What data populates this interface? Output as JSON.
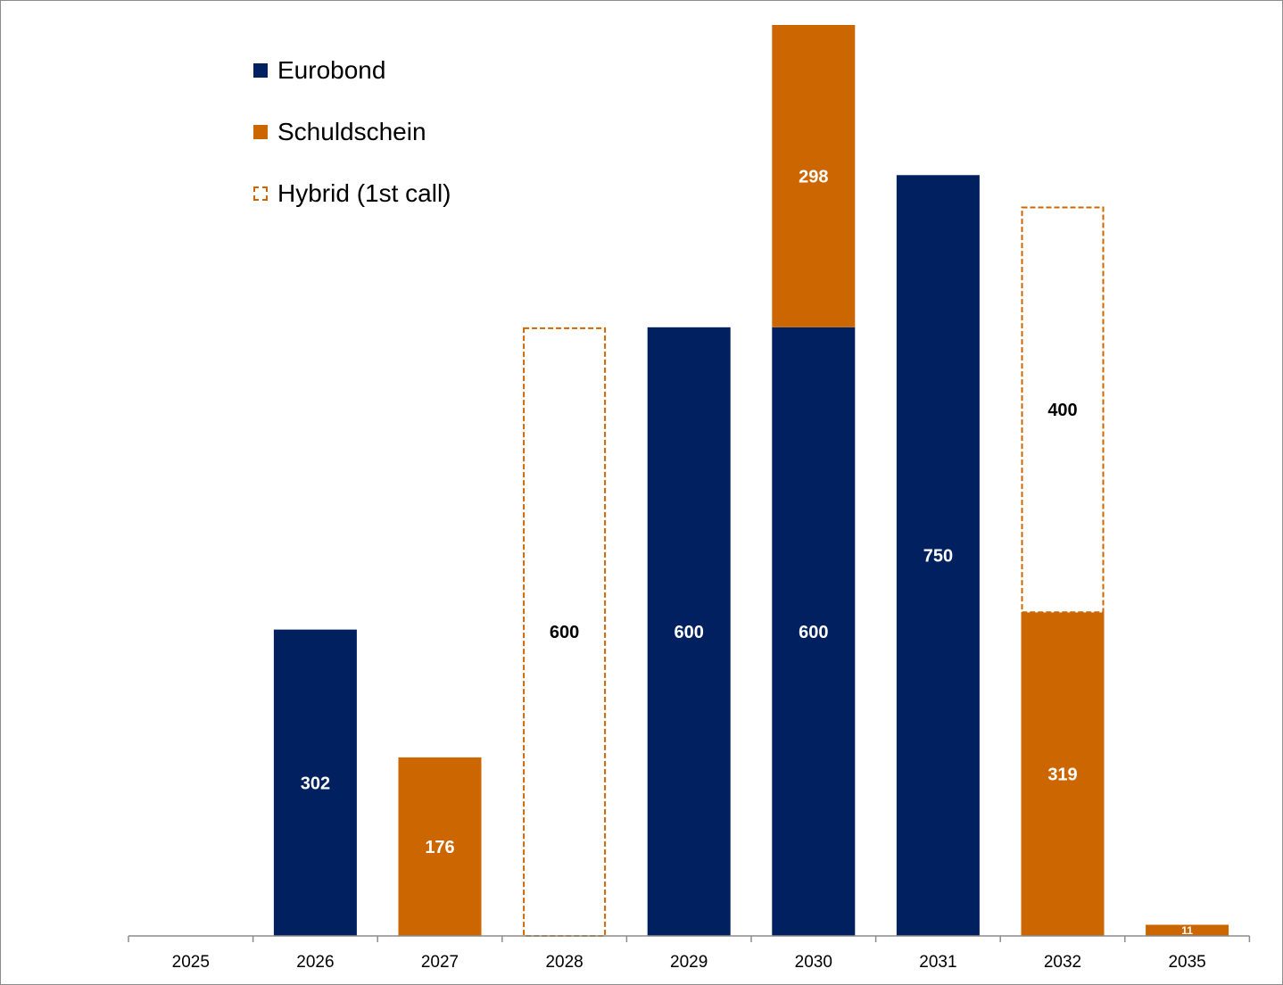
{
  "chart_data": {
    "type": "bar",
    "stacked": true,
    "title": "",
    "xlabel": "",
    "ylabel": "",
    "categories": [
      "2025",
      "2026",
      "2027",
      "2028",
      "2029",
      "2030",
      "2031",
      "2032",
      "2035"
    ],
    "ylim": [
      0,
      898
    ],
    "grid": false,
    "legend_position": "top-left",
    "series": [
      {
        "name": "Eurobond",
        "color": "#002060",
        "style": "solid",
        "label_color": "#ffffff",
        "values": [
          0,
          302,
          0,
          0,
          600,
          600,
          750,
          0,
          0
        ],
        "labels": [
          "",
          "302",
          "",
          "",
          "600",
          "600",
          "750",
          "",
          ""
        ]
      },
      {
        "name": "Schuldschein",
        "color": "#cc6600",
        "style": "solid",
        "label_color": "#ffffff",
        "values": [
          0,
          0,
          176,
          0,
          0,
          298,
          0,
          319,
          11
        ],
        "labels": [
          "",
          "",
          "176",
          "",
          "",
          "298",
          "",
          "319",
          "11"
        ]
      },
      {
        "name": "Hybrid (1st call)",
        "color": "#cc6600",
        "style": "dashed",
        "label_color": "#000000",
        "values": [
          0,
          0,
          0,
          600,
          0,
          0,
          0,
          400,
          0
        ],
        "labels": [
          "",
          "",
          "",
          "600",
          "",
          "",
          "",
          "400",
          ""
        ]
      }
    ]
  }
}
